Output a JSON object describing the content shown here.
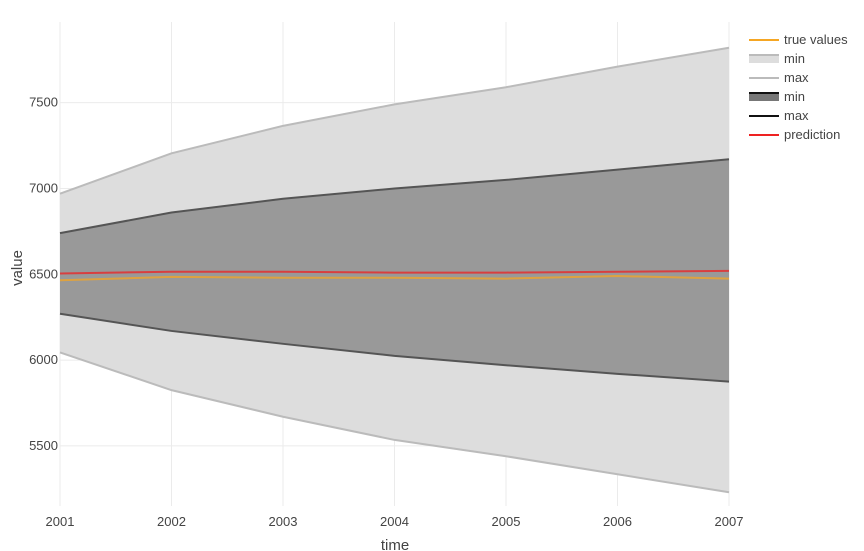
{
  "chart_data": {
    "type": "area",
    "title": "",
    "xlabel": "time",
    "ylabel": "value",
    "x": [
      2001,
      2002,
      2003,
      2004,
      2005,
      2006,
      2007
    ],
    "x_ticks": [
      "2001",
      "2002",
      "2003",
      "2004",
      "2005",
      "2006",
      "2007"
    ],
    "y_ticks": [
      5500,
      6000,
      6500,
      7000,
      7500
    ],
    "xlim": [
      2001,
      2007
    ],
    "ylim": [
      5150,
      7970
    ],
    "grid": true,
    "legend_position": "top-right",
    "outer_band": {
      "min": [
        6045,
        5825,
        5670,
        5535,
        5440,
        5335,
        5230
      ],
      "max": [
        6970,
        7205,
        7365,
        7490,
        7590,
        7710,
        7820
      ],
      "fill_color": "#dddddd",
      "line_color": "#bbbbbb"
    },
    "inner_band": {
      "min": [
        6270,
        6170,
        6095,
        6025,
        5970,
        5920,
        5875
      ],
      "max": [
        6740,
        6860,
        6940,
        7000,
        7050,
        7110,
        7170
      ],
      "fill_color": "#999999",
      "line_color": "#555555"
    },
    "series": [
      {
        "name": "prediction",
        "values": [
          6505,
          6515,
          6515,
          6510,
          6510,
          6515,
          6520
        ],
        "color": "#ee2222"
      },
      {
        "name": "true values",
        "values": [
          6465,
          6485,
          6480,
          6480,
          6475,
          6490,
          6475
        ],
        "color": "#f5a623"
      }
    ],
    "legend": [
      {
        "label": "true values",
        "kind": "line",
        "color": "#f5a623"
      },
      {
        "label": "min",
        "kind": "band",
        "color": "#dddddd",
        "edge": "#bbbbbb"
      },
      {
        "label": "max",
        "kind": "line",
        "color": "#bbbbbb"
      },
      {
        "label": "min",
        "kind": "band",
        "color": "#777777",
        "edge": "#111111"
      },
      {
        "label": "max",
        "kind": "line",
        "color": "#111111"
      },
      {
        "label": "prediction",
        "kind": "line",
        "color": "#ee2222"
      }
    ]
  }
}
